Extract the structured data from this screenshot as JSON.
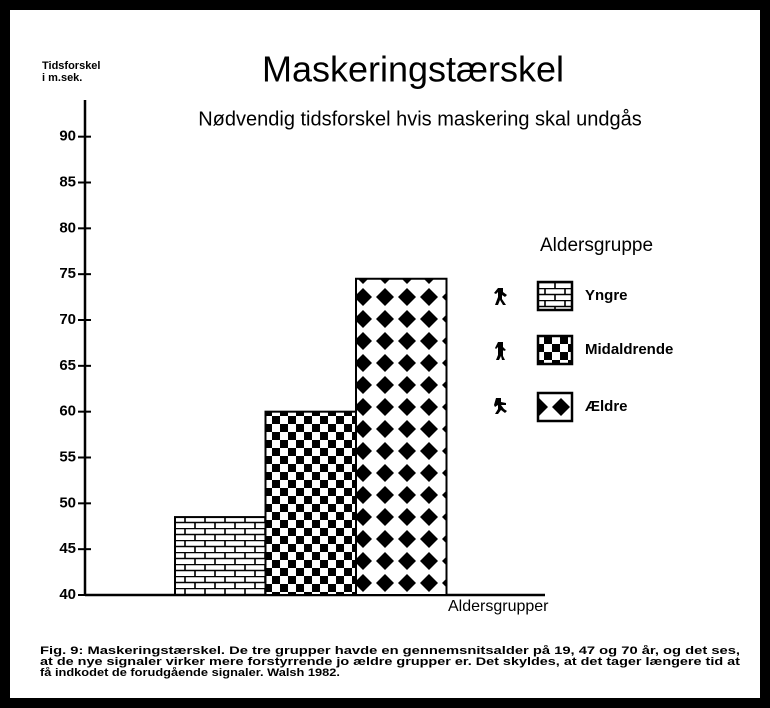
{
  "chart_data": {
    "type": "bar",
    "title": "Maskeringstærskel",
    "subtitle": "Nødvendig tidsforskel hvis maskering skal undgås",
    "ylabel": [
      "Tidsforskel",
      "i m.sek."
    ],
    "xlabel": "Aldersgrupper",
    "legend_title": "Aldersgruppe",
    "series": [
      {
        "name": "Yngre",
        "pattern": "brick",
        "color": "#000000",
        "values": [
          48.5
        ]
      },
      {
        "name": "Midaldrende",
        "pattern": "checker",
        "color": "#000000",
        "values": [
          60
        ]
      },
      {
        "name": "Ældre",
        "pattern": "diamond",
        "color": "#000000",
        "values": [
          74.5
        ]
      }
    ],
    "ylim": [
      40,
      94
    ],
    "yticks": [
      40,
      45,
      50,
      55,
      60,
      65,
      70,
      75,
      80,
      85,
      90
    ],
    "caption": [
      "Fig. 9: Maskeringstærskel. De tre grupper havde en gennemsnitsalder på 19, 47 og 70 år, og det ses,",
      "at de nye signaler virker mere forstyrrende jo ældre grupper er. Det skyldes, at det tager længere tid at",
      "få indkodet de forudgående signaler.  Walsh 1982."
    ]
  }
}
